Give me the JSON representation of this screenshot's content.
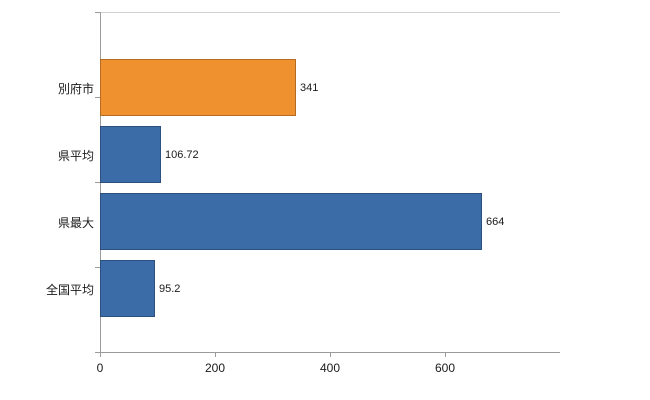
{
  "chart_data": {
    "type": "bar",
    "orientation": "horizontal",
    "title": "",
    "xlabel": "",
    "ylabel": "",
    "categories": [
      "別府市",
      "県平均",
      "県最大",
      "全国平均"
    ],
    "values": [
      341,
      106.72,
      664,
      95.2
    ],
    "value_labels": [
      "341",
      "106.72",
      "664",
      "95.2"
    ],
    "bar_colors": [
      "#f0912f",
      "#3c6ca8",
      "#3c6ca8",
      "#3c6ca8"
    ],
    "xlim": [
      0,
      800
    ],
    "xticks": [
      0,
      200,
      400,
      600
    ],
    "grid": false,
    "legend": null,
    "accent_orange": "#f0912f",
    "accent_blue": "#3c6ca8",
    "axis_color": "#9b9b9b"
  }
}
